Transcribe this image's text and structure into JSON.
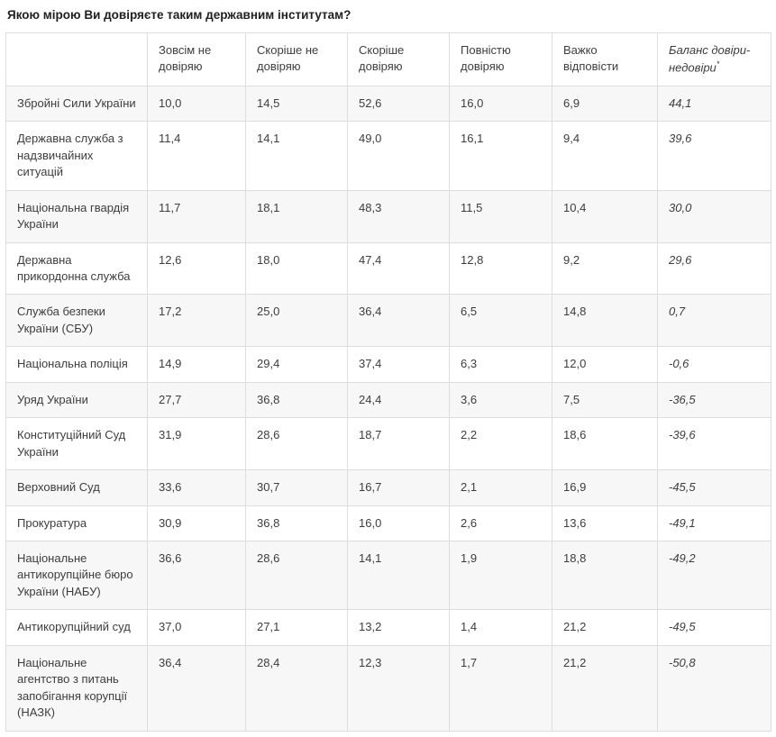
{
  "title": "Якою мірою Ви довіряєте таким державним інститутам?",
  "table": {
    "columns": [
      "Зовсім не довіряю",
      "Скоріше не довіряю",
      "Скоріше довіряю",
      "Повністю довіряю",
      "Важко відповісти"
    ],
    "balance_column": {
      "label": "Баланс довіри-недовіри",
      "asterisk": "*"
    },
    "rows": [
      {
        "institution": "Збройні Сили України",
        "values": [
          "10,0",
          "14,5",
          "52,6",
          "16,0",
          "6,9"
        ],
        "balance": "44,1"
      },
      {
        "institution": "Державна служба з надзвичайних ситуацій",
        "values": [
          "11,4",
          "14,1",
          "49,0",
          "16,1",
          "9,4"
        ],
        "balance": "39,6"
      },
      {
        "institution": "Національна гвардія України",
        "values": [
          "11,7",
          "18,1",
          "48,3",
          "11,5",
          "10,4"
        ],
        "balance": "30,0"
      },
      {
        "institution": "Державна прикордонна служба",
        "values": [
          "12,6",
          "18,0",
          "47,4",
          "12,8",
          "9,2"
        ],
        "balance": "29,6"
      },
      {
        "institution": "Служба безпеки України (СБУ)",
        "values": [
          "17,2",
          "25,0",
          "36,4",
          "6,5",
          "14,8"
        ],
        "balance": "0,7"
      },
      {
        "institution": "Національна поліція",
        "values": [
          "14,9",
          "29,4",
          "37,4",
          "6,3",
          "12,0"
        ],
        "balance": "-0,6"
      },
      {
        "institution": "Уряд України",
        "values": [
          "27,7",
          "36,8",
          "24,4",
          "3,6",
          "7,5"
        ],
        "balance": "-36,5"
      },
      {
        "institution": "Конституційний Суд України",
        "values": [
          "31,9",
          "28,6",
          "18,7",
          "2,2",
          "18,6"
        ],
        "balance": "-39,6"
      },
      {
        "institution": "Верховний Суд",
        "values": [
          "33,6",
          "30,7",
          "16,7",
          "2,1",
          "16,9"
        ],
        "balance": "-45,5"
      },
      {
        "institution": "Прокуратура",
        "values": [
          "30,9",
          "36,8",
          "16,0",
          "2,6",
          "13,6"
        ],
        "balance": "-49,1"
      },
      {
        "institution": "Національне антикорупційне бюро України (НАБУ)",
        "values": [
          "36,6",
          "28,6",
          "14,1",
          "1,9",
          "18,8"
        ],
        "balance": "-49,2"
      },
      {
        "institution": "Антикорупційний суд",
        "values": [
          "37,0",
          "27,1",
          "13,2",
          "1,4",
          "21,2"
        ],
        "balance": "-49,5"
      },
      {
        "institution": "Національне агентство з питань запобігання корупції (НАЗК)",
        "values": [
          "36,4",
          "28,4",
          "12,3",
          "1,7",
          "21,2"
        ],
        "balance": "-50,8"
      }
    ]
  },
  "chart_data": {
    "type": "table",
    "title": "Якою мірою Ви довіряєте таким державним інститутам?",
    "columns": [
      "Зовсім не довіряю",
      "Скоріше не довіряю",
      "Скоріше довіряю",
      "Повністю довіряю",
      "Важко відповісти",
      "Баланс довіри-недовіри*"
    ],
    "rows": [
      {
        "institution": "Збройні Сили України",
        "values": [
          10.0,
          14.5,
          52.6,
          16.0,
          6.9,
          44.1
        ]
      },
      {
        "institution": "Державна служба з надзвичайних ситуацій",
        "values": [
          11.4,
          14.1,
          49.0,
          16.1,
          9.4,
          39.6
        ]
      },
      {
        "institution": "Національна гвардія України",
        "values": [
          11.7,
          18.1,
          48.3,
          11.5,
          10.4,
          30.0
        ]
      },
      {
        "institution": "Державна прикордонна служба",
        "values": [
          12.6,
          18.0,
          47.4,
          12.8,
          9.2,
          29.6
        ]
      },
      {
        "institution": "Служба безпеки України (СБУ)",
        "values": [
          17.2,
          25.0,
          36.4,
          6.5,
          14.8,
          0.7
        ]
      },
      {
        "institution": "Національна поліція",
        "values": [
          14.9,
          29.4,
          37.4,
          6.3,
          12.0,
          -0.6
        ]
      },
      {
        "institution": "Уряд України",
        "values": [
          27.7,
          36.8,
          24.4,
          3.6,
          7.5,
          -36.5
        ]
      },
      {
        "institution": "Конституційний Суд України",
        "values": [
          31.9,
          28.6,
          18.7,
          2.2,
          18.6,
          -39.6
        ]
      },
      {
        "institution": "Верховний Суд",
        "values": [
          33.6,
          30.7,
          16.7,
          2.1,
          16.9,
          -45.5
        ]
      },
      {
        "institution": "Прокуратура",
        "values": [
          30.9,
          36.8,
          16.0,
          2.6,
          13.6,
          -49.1
        ]
      },
      {
        "institution": "Національне антикорупційне бюро України (НАБУ)",
        "values": [
          36.6,
          28.6,
          14.1,
          1.9,
          18.8,
          -49.2
        ]
      },
      {
        "institution": "Антикорупційний суд",
        "values": [
          37.0,
          27.1,
          13.2,
          1.4,
          21.2,
          -49.5
        ]
      },
      {
        "institution": "Національне агентство з питань запобігання корупції (НАЗК)",
        "values": [
          36.4,
          28.4,
          12.3,
          1.7,
          21.2,
          -50.8
        ]
      }
    ]
  }
}
